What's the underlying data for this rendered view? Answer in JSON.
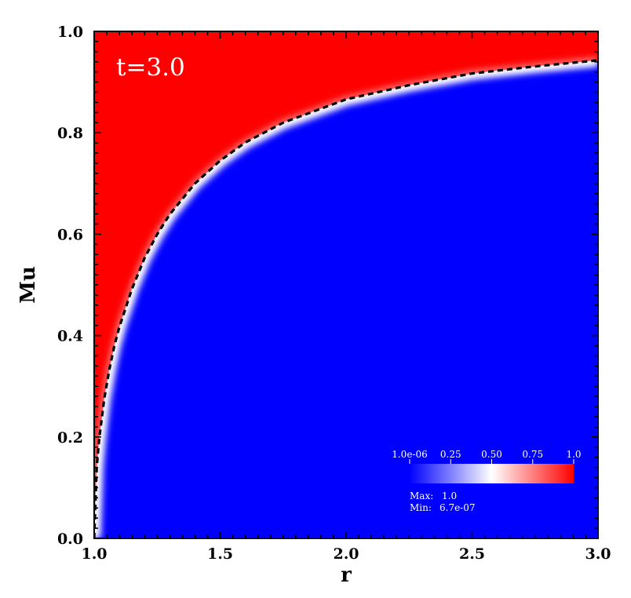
{
  "chart_data": {
    "type": "heatmap",
    "title": "",
    "annotation": "t=3.0",
    "xlabel": "r",
    "ylabel": "Mu",
    "xlim": [
      1.0,
      3.0
    ],
    "ylim": [
      0.0,
      1.0
    ],
    "x_ticks": [
      "1.0",
      "1.5",
      "2.0",
      "2.5",
      "3.0"
    ],
    "y_ticks": [
      "0.0",
      "0.2",
      "0.4",
      "0.6",
      "0.8",
      "1.0"
    ],
    "field_description": "Red region (value 1.0) above curve, blue region (value ~1e-06) below, with a sharp white transition band",
    "boundary_curve": {
      "name": "dashed boundary",
      "style": "dashed",
      "color": "#000000",
      "x": [
        1.0,
        1.01,
        1.02,
        1.04,
        1.06,
        1.08,
        1.1,
        1.15,
        1.2,
        1.25,
        1.3,
        1.4,
        1.5,
        1.6,
        1.75,
        2.0,
        2.25,
        2.5,
        2.75,
        3.0
      ],
      "y": [
        0.0,
        0.14,
        0.196,
        0.275,
        0.333,
        0.38,
        0.417,
        0.492,
        0.553,
        0.6,
        0.639,
        0.7,
        0.745,
        0.781,
        0.82,
        0.866,
        0.894,
        0.917,
        0.931,
        0.943
      ]
    },
    "colorbar": {
      "tick_labels": [
        "1.0e-06",
        "0.25",
        "0.50",
        "0.75",
        "1.0"
      ],
      "tick_values": [
        0.0,
        0.25,
        0.5,
        0.75,
        1.0
      ],
      "colors": [
        "#0000ff",
        "#ffffff",
        "#ff0000"
      ],
      "max_label": "Max:",
      "max_value": "1.0",
      "min_label": "Min:",
      "min_value": "6.7e-07"
    }
  }
}
